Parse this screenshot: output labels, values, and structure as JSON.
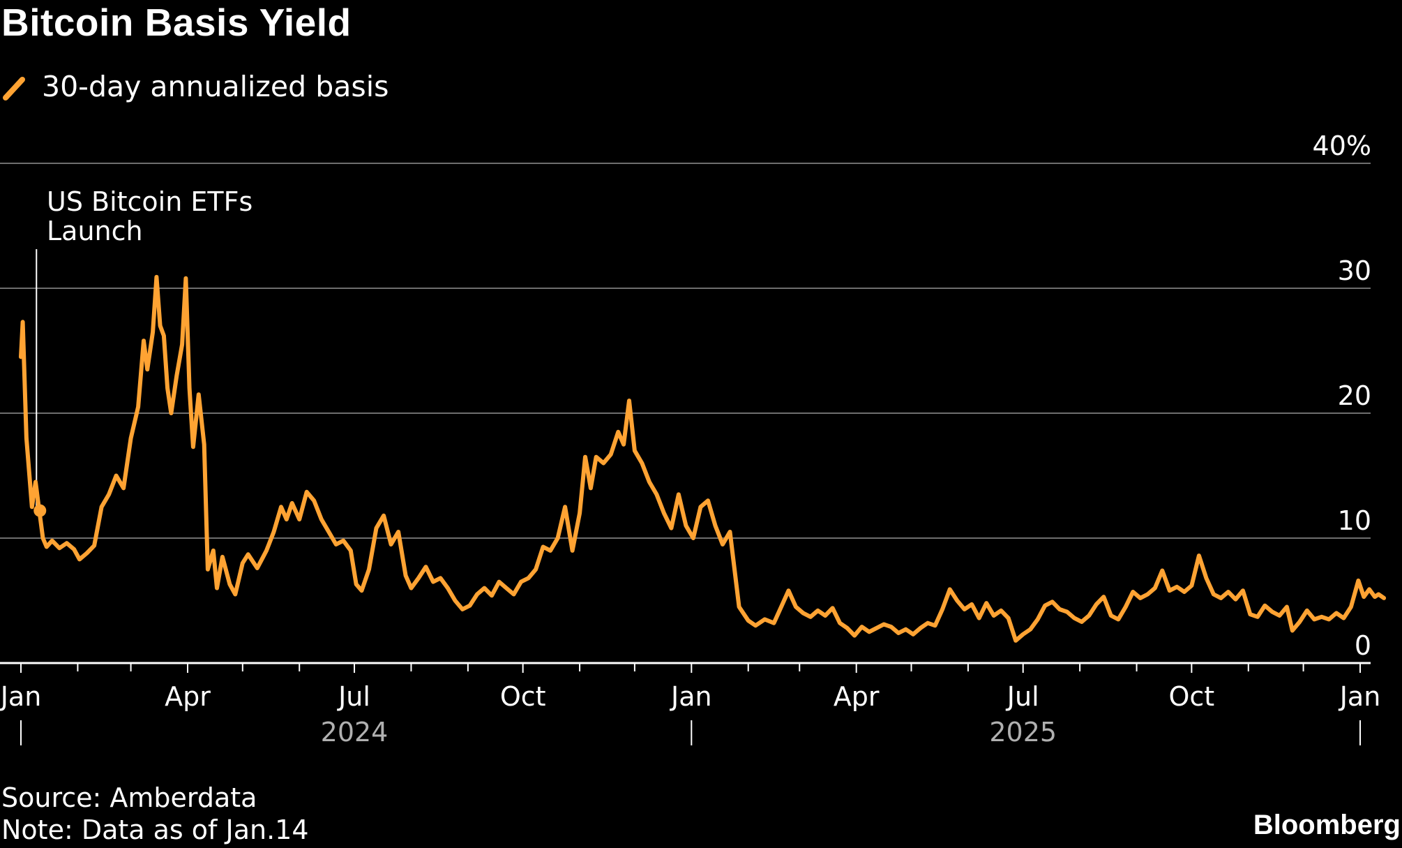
{
  "title": "Bitcoin Basis Yield",
  "source": "Source: Amberdata",
  "note": "Note: Data as of Jan.14",
  "brand": "Bloomberg",
  "colors": {
    "line": "#ffa333",
    "grid": "#6e6e6e",
    "axis": "#ffffff",
    "year": "#b0b0b0"
  },
  "chart_data": {
    "type": "line",
    "title": "Bitcoin Basis Yield",
    "xlabel": "",
    "ylabel": "",
    "ylim": [
      0,
      40
    ],
    "yticks": [
      0,
      10,
      20,
      30,
      40
    ],
    "ytick_labels": [
      "0",
      "10",
      "20",
      "30",
      "40%"
    ],
    "grid": true,
    "legend_position": "top-left",
    "xlim": [
      "2024-01-01",
      "2026-02-01"
    ],
    "xticks": [
      {
        "date": "2024-01-01",
        "label": "Jan"
      },
      {
        "date": "2024-04-01",
        "label": "Apr"
      },
      {
        "date": "2024-07-01",
        "label": "Jul"
      },
      {
        "date": "2024-10-01",
        "label": "Oct"
      },
      {
        "date": "2025-01-01",
        "label": "Jan"
      },
      {
        "date": "2025-04-01",
        "label": "Apr"
      },
      {
        "date": "2025-07-01",
        "label": "Jul"
      },
      {
        "date": "2025-10-01",
        "label": "Oct"
      },
      {
        "date": "2026-01-01",
        "label": "Jan"
      }
    ],
    "minor_ticks": [
      "2024-02-01",
      "2024-03-01",
      "2024-05-01",
      "2024-06-01",
      "2024-08-01",
      "2024-09-01",
      "2024-11-01",
      "2024-12-01",
      "2025-02-01",
      "2025-03-01",
      "2025-05-01",
      "2025-06-01",
      "2025-08-01",
      "2025-09-01",
      "2025-11-01",
      "2025-12-01"
    ],
    "year_labels": [
      {
        "label": "2024",
        "date": "2024-07-01"
      },
      {
        "label": "2025",
        "date": "2025-07-01"
      }
    ],
    "year_dividers": [
      "2024-01-01",
      "2025-01-01",
      "2026-01-01"
    ],
    "annotation": {
      "lines": [
        "US Bitcoin ETFs",
        "Launch"
      ],
      "date": "2024-01-11",
      "value": 12.2
    },
    "series": [
      {
        "name": "30-day annualized basis",
        "points": [
          [
            "2024-01-01",
            24.5
          ],
          [
            "2024-01-02",
            27.3
          ],
          [
            "2024-01-04",
            18.0
          ],
          [
            "2024-01-07",
            12.5
          ],
          [
            "2024-01-09",
            14.5
          ],
          [
            "2024-01-11",
            12.2
          ],
          [
            "2024-01-13",
            10.0
          ],
          [
            "2024-01-15",
            9.3
          ],
          [
            "2024-01-18",
            9.8
          ],
          [
            "2024-01-22",
            9.2
          ],
          [
            "2024-01-26",
            9.6
          ],
          [
            "2024-01-30",
            9.1
          ],
          [
            "2024-02-02",
            8.3
          ],
          [
            "2024-02-06",
            8.8
          ],
          [
            "2024-02-10",
            9.4
          ],
          [
            "2024-02-14",
            12.5
          ],
          [
            "2024-02-18",
            13.5
          ],
          [
            "2024-02-22",
            15.0
          ],
          [
            "2024-02-26",
            14.0
          ],
          [
            "2024-03-01",
            18.0
          ],
          [
            "2024-03-05",
            20.5
          ],
          [
            "2024-03-08",
            25.8
          ],
          [
            "2024-03-10",
            23.5
          ],
          [
            "2024-03-13",
            26.5
          ],
          [
            "2024-03-15",
            30.9
          ],
          [
            "2024-03-17",
            27.0
          ],
          [
            "2024-03-19",
            26.2
          ],
          [
            "2024-03-21",
            22.0
          ],
          [
            "2024-03-23",
            20.0
          ],
          [
            "2024-03-26",
            23.0
          ],
          [
            "2024-03-29",
            25.5
          ],
          [
            "2024-03-31",
            30.8
          ],
          [
            "2024-04-02",
            22.0
          ],
          [
            "2024-04-04",
            17.3
          ],
          [
            "2024-04-07",
            21.5
          ],
          [
            "2024-04-10",
            17.5
          ],
          [
            "2024-04-12",
            7.5
          ],
          [
            "2024-04-15",
            9.0
          ],
          [
            "2024-04-17",
            6.0
          ],
          [
            "2024-04-20",
            8.5
          ],
          [
            "2024-04-24",
            6.3
          ],
          [
            "2024-04-27",
            5.5
          ],
          [
            "2024-05-01",
            8.0
          ],
          [
            "2024-05-04",
            8.7
          ],
          [
            "2024-05-09",
            7.6
          ],
          [
            "2024-05-14",
            9.0
          ],
          [
            "2024-05-18",
            10.5
          ],
          [
            "2024-05-22",
            12.5
          ],
          [
            "2024-05-25",
            11.5
          ],
          [
            "2024-05-28",
            12.8
          ],
          [
            "2024-06-01",
            11.5
          ],
          [
            "2024-06-05",
            13.7
          ],
          [
            "2024-06-09",
            13.0
          ],
          [
            "2024-06-13",
            11.5
          ],
          [
            "2024-06-17",
            10.5
          ],
          [
            "2024-06-21",
            9.5
          ],
          [
            "2024-06-25",
            9.8
          ],
          [
            "2024-06-29",
            9.0
          ],
          [
            "2024-07-02",
            6.3
          ],
          [
            "2024-07-05",
            5.8
          ],
          [
            "2024-07-09",
            7.5
          ],
          [
            "2024-07-13",
            10.8
          ],
          [
            "2024-07-17",
            11.8
          ],
          [
            "2024-07-21",
            9.5
          ],
          [
            "2024-07-25",
            10.5
          ],
          [
            "2024-07-29",
            7.0
          ],
          [
            "2024-08-01",
            6.0
          ],
          [
            "2024-08-05",
            6.8
          ],
          [
            "2024-08-09",
            7.7
          ],
          [
            "2024-08-13",
            6.5
          ],
          [
            "2024-08-17",
            6.8
          ],
          [
            "2024-08-21",
            6.0
          ],
          [
            "2024-08-25",
            5.0
          ],
          [
            "2024-08-29",
            4.3
          ],
          [
            "2024-09-02",
            4.6
          ],
          [
            "2024-09-06",
            5.5
          ],
          [
            "2024-09-10",
            6.0
          ],
          [
            "2024-09-14",
            5.4
          ],
          [
            "2024-09-18",
            6.5
          ],
          [
            "2024-09-22",
            6.0
          ],
          [
            "2024-09-26",
            5.5
          ],
          [
            "2024-09-30",
            6.5
          ],
          [
            "2024-10-04",
            6.8
          ],
          [
            "2024-10-08",
            7.5
          ],
          [
            "2024-10-12",
            9.3
          ],
          [
            "2024-10-16",
            9.0
          ],
          [
            "2024-10-20",
            10.0
          ],
          [
            "2024-10-24",
            12.5
          ],
          [
            "2024-10-28",
            9.0
          ],
          [
            "2024-11-01",
            12.0
          ],
          [
            "2024-11-04",
            16.5
          ],
          [
            "2024-11-07",
            14.0
          ],
          [
            "2024-11-10",
            16.5
          ],
          [
            "2024-11-14",
            16.0
          ],
          [
            "2024-11-18",
            16.7
          ],
          [
            "2024-11-22",
            18.5
          ],
          [
            "2024-11-25",
            17.5
          ],
          [
            "2024-11-28",
            21.0
          ],
          [
            "2024-12-01",
            17.0
          ],
          [
            "2024-12-05",
            16.0
          ],
          [
            "2024-12-09",
            14.5
          ],
          [
            "2024-12-13",
            13.5
          ],
          [
            "2024-12-17",
            12.0
          ],
          [
            "2024-12-21",
            10.8
          ],
          [
            "2024-12-25",
            13.5
          ],
          [
            "2024-12-29",
            11.0
          ],
          [
            "2025-01-02",
            10.0
          ],
          [
            "2025-01-06",
            12.5
          ],
          [
            "2025-01-10",
            13.0
          ],
          [
            "2025-01-14",
            11.0
          ],
          [
            "2025-01-18",
            9.5
          ],
          [
            "2025-01-22",
            10.5
          ],
          [
            "2025-01-27",
            4.5
          ],
          [
            "2025-02-01",
            3.4
          ],
          [
            "2025-02-05",
            3.0
          ],
          [
            "2025-02-10",
            3.5
          ],
          [
            "2025-02-15",
            3.2
          ],
          [
            "2025-02-19",
            4.5
          ],
          [
            "2025-02-23",
            5.8
          ],
          [
            "2025-02-27",
            4.5
          ],
          [
            "2025-03-03",
            4.0
          ],
          [
            "2025-03-07",
            3.7
          ],
          [
            "2025-03-11",
            4.2
          ],
          [
            "2025-03-15",
            3.8
          ],
          [
            "2025-03-19",
            4.4
          ],
          [
            "2025-03-23",
            3.2
          ],
          [
            "2025-03-27",
            2.8
          ],
          [
            "2025-03-31",
            2.2
          ],
          [
            "2025-04-04",
            2.9
          ],
          [
            "2025-04-08",
            2.5
          ],
          [
            "2025-04-12",
            2.8
          ],
          [
            "2025-04-16",
            3.1
          ],
          [
            "2025-04-20",
            2.9
          ],
          [
            "2025-04-24",
            2.4
          ],
          [
            "2025-04-28",
            2.7
          ],
          [
            "2025-05-02",
            2.3
          ],
          [
            "2025-05-06",
            2.8
          ],
          [
            "2025-05-10",
            3.2
          ],
          [
            "2025-05-14",
            3.0
          ],
          [
            "2025-05-18",
            4.3
          ],
          [
            "2025-05-22",
            5.9
          ],
          [
            "2025-05-26",
            5.0
          ],
          [
            "2025-05-30",
            4.3
          ],
          [
            "2025-06-03",
            4.7
          ],
          [
            "2025-06-07",
            3.6
          ],
          [
            "2025-06-11",
            4.8
          ],
          [
            "2025-06-15",
            3.8
          ],
          [
            "2025-06-19",
            4.2
          ],
          [
            "2025-06-23",
            3.6
          ],
          [
            "2025-06-27",
            1.8
          ],
          [
            "2025-07-01",
            2.3
          ],
          [
            "2025-07-05",
            2.7
          ],
          [
            "2025-07-09",
            3.5
          ],
          [
            "2025-07-13",
            4.6
          ],
          [
            "2025-07-17",
            4.9
          ],
          [
            "2025-07-21",
            4.3
          ],
          [
            "2025-07-25",
            4.1
          ],
          [
            "2025-07-29",
            3.6
          ],
          [
            "2025-08-02",
            3.3
          ],
          [
            "2025-08-06",
            3.8
          ],
          [
            "2025-08-10",
            4.7
          ],
          [
            "2025-08-14",
            5.3
          ],
          [
            "2025-08-18",
            3.8
          ],
          [
            "2025-08-22",
            3.5
          ],
          [
            "2025-08-26",
            4.5
          ],
          [
            "2025-08-30",
            5.7
          ],
          [
            "2025-09-03",
            5.2
          ],
          [
            "2025-09-07",
            5.5
          ],
          [
            "2025-09-11",
            6.0
          ],
          [
            "2025-09-15",
            7.4
          ],
          [
            "2025-09-19",
            5.8
          ],
          [
            "2025-09-23",
            6.1
          ],
          [
            "2025-09-27",
            5.7
          ],
          [
            "2025-10-01",
            6.2
          ],
          [
            "2025-10-05",
            8.6
          ],
          [
            "2025-10-09",
            6.8
          ],
          [
            "2025-10-13",
            5.5
          ],
          [
            "2025-10-17",
            5.2
          ],
          [
            "2025-10-21",
            5.7
          ],
          [
            "2025-10-25",
            5.1
          ],
          [
            "2025-10-29",
            5.8
          ],
          [
            "2025-11-02",
            3.9
          ],
          [
            "2025-11-06",
            3.7
          ],
          [
            "2025-11-10",
            4.6
          ],
          [
            "2025-11-14",
            4.1
          ],
          [
            "2025-11-18",
            3.8
          ],
          [
            "2025-11-22",
            4.5
          ],
          [
            "2025-11-25",
            2.6
          ],
          [
            "2025-11-29",
            3.3
          ],
          [
            "2025-12-03",
            4.2
          ],
          [
            "2025-12-07",
            3.5
          ],
          [
            "2025-12-11",
            3.7
          ],
          [
            "2025-12-15",
            3.5
          ],
          [
            "2025-12-19",
            4.0
          ],
          [
            "2025-12-23",
            3.6
          ],
          [
            "2025-12-27",
            4.5
          ],
          [
            "2025-12-31",
            6.6
          ],
          [
            "2026-01-03",
            5.3
          ],
          [
            "2026-01-06",
            5.9
          ],
          [
            "2026-01-09",
            5.3
          ],
          [
            "2026-01-11",
            5.5
          ],
          [
            "2026-01-14",
            5.2
          ]
        ]
      }
    ]
  }
}
